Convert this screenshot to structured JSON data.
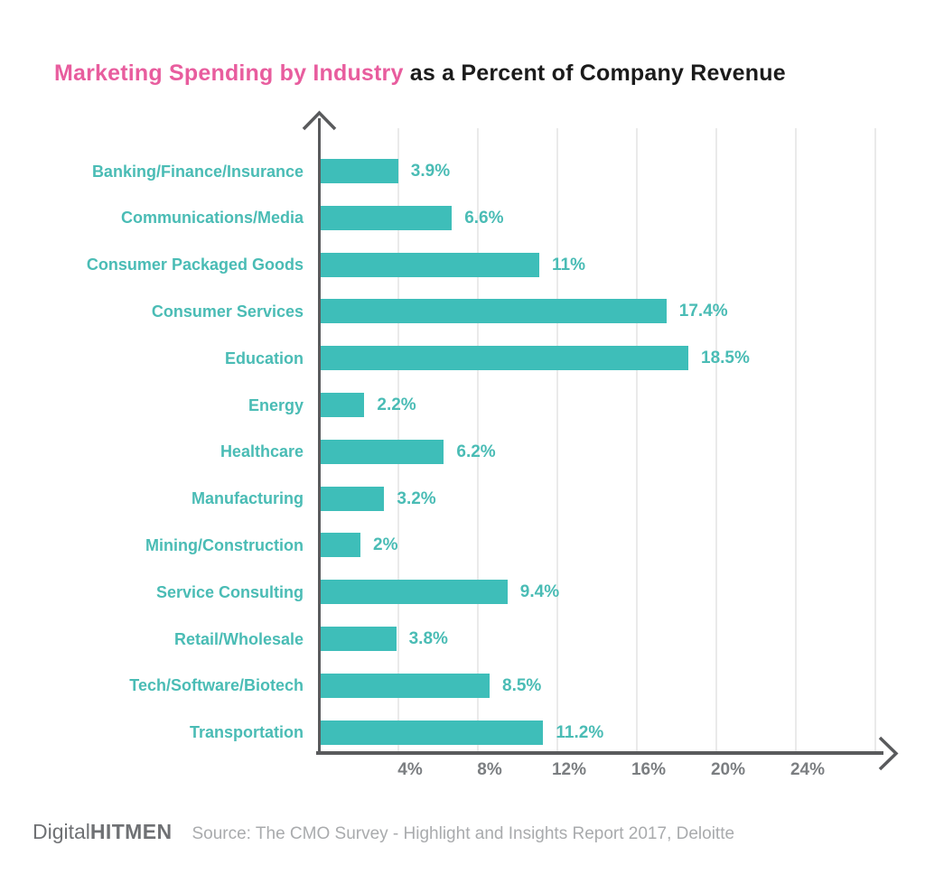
{
  "title": {
    "highlight": "Marketing Spending by Industry",
    "rest": " as a Percent of Company Revenue"
  },
  "chart_data": {
    "type": "bar",
    "orientation": "horizontal",
    "categories": [
      "Banking/Finance/Insurance",
      "Communications/Media",
      "Consumer Packaged Goods",
      "Consumer Services",
      "Education",
      "Energy",
      "Healthcare",
      "Manufacturing",
      "Mining/Construction",
      "Service Consulting",
      "Retail/Wholesale",
      "Tech/Software/Biotech",
      "Transportation"
    ],
    "values": [
      3.9,
      6.6,
      11,
      17.4,
      18.5,
      2.2,
      6.2,
      3.2,
      2,
      9.4,
      3.8,
      8.5,
      11.2
    ],
    "value_labels": [
      "3.9%",
      "6.6%",
      "11%",
      "17.4%",
      "18.5%",
      "2.2%",
      "6.2%",
      "3.2%",
      "2%",
      "9.4%",
      "3.8%",
      "8.5%",
      "11.2%"
    ],
    "x_ticks": [
      "4%",
      "8%",
      "12%",
      "16%",
      "20%",
      "24%"
    ],
    "x_tick_step_percent": 4,
    "x_axis_max_percent": 28,
    "grid": true,
    "legend": "none",
    "xlabel": "",
    "ylabel": "",
    "colors": {
      "bar": "#3ebeb9",
      "category_text": "#4abcb5",
      "value_text": "#4abcb5",
      "axis": "#595a5c",
      "tick_text": "#7b7e81",
      "gridline": "#eaeaea",
      "title_highlight": "#e85d9e",
      "title_rest": "#1b1b1b"
    }
  },
  "footer": {
    "logo_regular": "Digital",
    "logo_bold": "HITMEN",
    "source": "Source: The CMO Survey - Highlight and Insights Report 2017, Deloitte"
  }
}
